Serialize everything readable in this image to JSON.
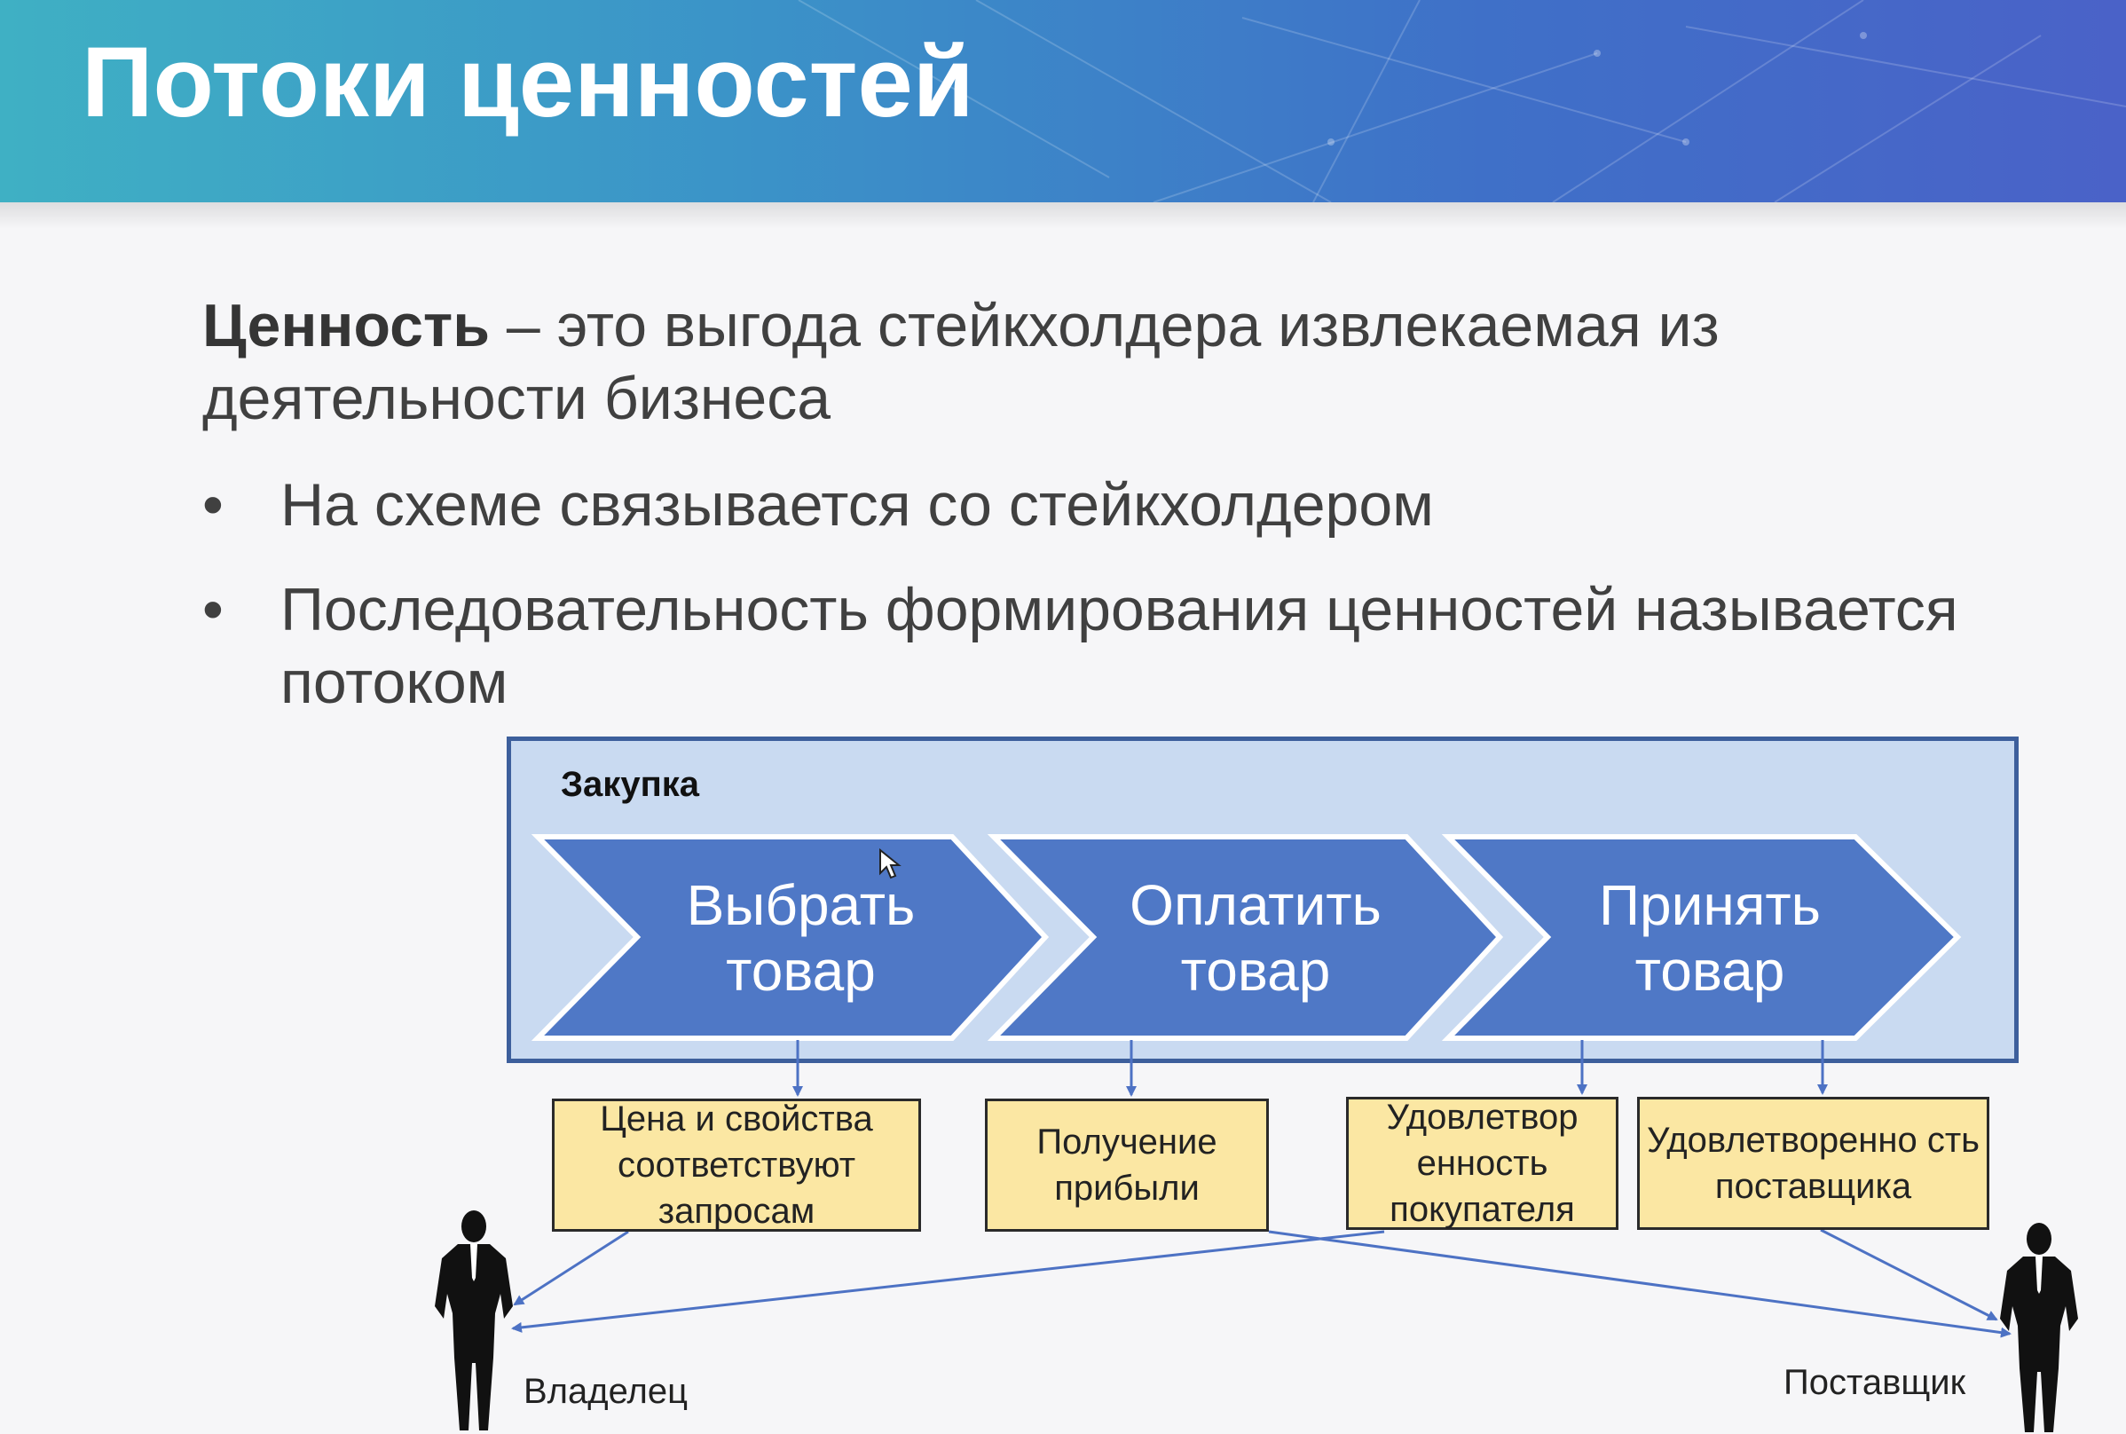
{
  "slide": {
    "title": "Потоки ценностей",
    "definition_term": "Ценность",
    "definition_text": " – это выгода стейкхолдера извлекаемая из деятельности бизнеса",
    "bullets": [
      "На схеме связывается со стейкхолдером",
      "Последовательность формирования ценностей называется потоком"
    ]
  },
  "diagram": {
    "frame_label": "Закупка",
    "stages": [
      {
        "line1": "Выбрать",
        "line2": "товар"
      },
      {
        "line1": "Оплатить",
        "line2": "товар"
      },
      {
        "line1": "Принять",
        "line2": "товар"
      }
    ],
    "values": [
      "Цена и свойства соответствуют запросам",
      "Получение прибыли",
      "Удовлетвор енность покупателя",
      "Удовлетворенно сть поставщика"
    ],
    "stakeholders": {
      "owner": "Владелец",
      "supplier": "Поставщик"
    },
    "colors": {
      "chevron": "#4f78c6",
      "frame_fill": "#c9daf1",
      "frame_border": "#3d5f9c",
      "value_fill": "#fbe7a3",
      "link": "#4d72c4"
    }
  }
}
